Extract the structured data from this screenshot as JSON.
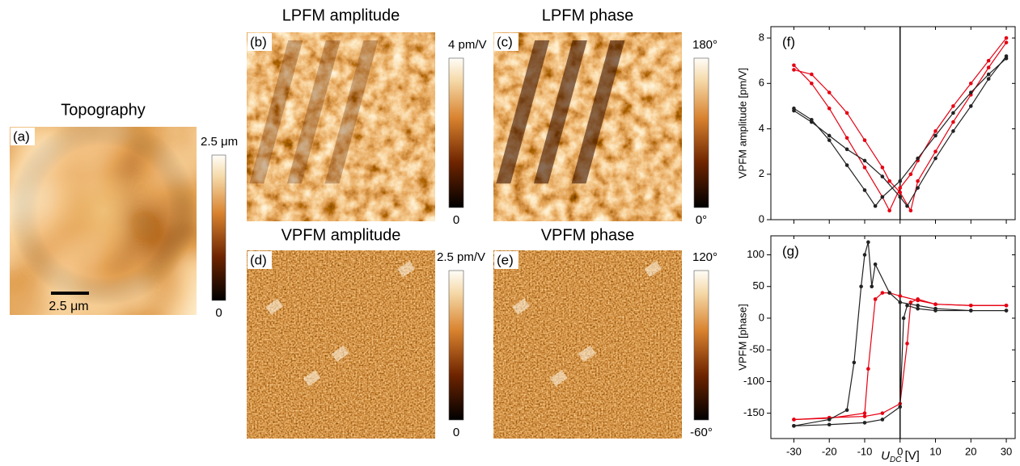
{
  "panels": [
    {
      "label": "(a)",
      "title": "Topography",
      "colorbar_top": "2.5 μm",
      "colorbar_bottom": "0",
      "scalebar": "2.5 μm"
    },
    {
      "label": "(b)",
      "title": "LPFM amplitude",
      "colorbar_top": "4 pm/V",
      "colorbar_bottom": "0"
    },
    {
      "label": "(c)",
      "title": "LPFM phase",
      "colorbar_top": "180°",
      "colorbar_bottom": "0°"
    },
    {
      "label": "(d)",
      "title": "VPFM amplitude",
      "colorbar_top": "2.5 pm/V",
      "colorbar_bottom": "0"
    },
    {
      "label": "(e)",
      "title": "VPFM phase",
      "colorbar_top": "120°",
      "colorbar_bottom": "-60°"
    }
  ],
  "chart_data": [
    {
      "type": "line",
      "label": "(f)",
      "ylabel": "VPFM amplitude [pm/V]",
      "xlim": [
        -36.5,
        32.5
      ],
      "ylim": [
        0,
        8.5
      ],
      "xticks": [
        -30,
        -20,
        -10,
        0,
        10,
        20,
        30
      ],
      "yticks": [
        0,
        2,
        4,
        6,
        8
      ],
      "series": [
        {
          "color": "#e60012",
          "x": [
            -30,
            -25,
            -20,
            -15,
            -10,
            -5,
            -3,
            0,
            3,
            5,
            10,
            15,
            20,
            25,
            30
          ],
          "values": [
            6.8,
            6.0,
            4.9,
            3.6,
            2.3,
            1.0,
            0.4,
            1.4,
            2.0,
            2.6,
            3.9,
            5.0,
            6.0,
            7.0,
            8.0
          ]
        },
        {
          "color": "#e60012",
          "x": [
            30,
            25,
            20,
            15,
            10,
            5,
            3,
            0,
            -3,
            -5,
            -10,
            -15,
            -20,
            -25,
            -30
          ],
          "values": [
            7.8,
            6.7,
            5.5,
            4.3,
            3.0,
            1.7,
            0.4,
            1.2,
            1.7,
            2.3,
            3.5,
            4.7,
            5.6,
            6.4,
            6.6
          ]
        },
        {
          "color": "#222222",
          "x": [
            -30,
            -25,
            -20,
            -15,
            -10,
            -7,
            -5,
            0,
            5,
            10,
            15,
            20,
            25,
            30
          ],
          "values": [
            4.9,
            4.4,
            3.5,
            2.4,
            1.3,
            0.6,
            1.0,
            1.7,
            2.7,
            3.7,
            4.7,
            5.6,
            6.4,
            7.1
          ]
        },
        {
          "color": "#222222",
          "x": [
            30,
            25,
            20,
            15,
            10,
            5,
            2,
            0,
            -5,
            -10,
            -15,
            -20,
            -25,
            -30
          ],
          "values": [
            7.2,
            6.2,
            5.0,
            3.9,
            2.7,
            1.4,
            0.6,
            1.0,
            1.9,
            2.6,
            3.1,
            3.7,
            4.3,
            4.8
          ]
        }
      ]
    },
    {
      "type": "line",
      "label": "(g)",
      "ylabel": "VPFM [phase]",
      "xlabel": {
        "symbol": "U",
        "subscript": "DC",
        "unit": "[V]"
      },
      "xlim": [
        -36.5,
        32.5
      ],
      "ylim": [
        -190,
        130
      ],
      "xticks": [
        -30,
        -20,
        -10,
        0,
        10,
        20,
        30
      ],
      "yticks": [
        -150,
        -100,
        -50,
        0,
        50,
        100
      ],
      "series": [
        {
          "color": "#e60012",
          "x": [
            -30,
            -20,
            -10,
            -5,
            0,
            2,
            3,
            5,
            10,
            20,
            30
          ],
          "values": [
            -160,
            -157,
            -155,
            -150,
            -135,
            -40,
            25,
            30,
            22,
            20,
            20
          ]
        },
        {
          "color": "#e60012",
          "x": [
            30,
            20,
            10,
            5,
            0,
            -3,
            -5,
            -7,
            -9,
            -10,
            -20,
            -30
          ],
          "values": [
            20,
            20,
            22,
            28,
            35,
            40,
            40,
            30,
            -80,
            -150,
            -158,
            -160
          ]
        },
        {
          "color": "#222222",
          "x": [
            -30,
            -20,
            -10,
            -5,
            0,
            1,
            2,
            5,
            10,
            20,
            30
          ],
          "values": [
            -170,
            -168,
            -165,
            -160,
            -140,
            0,
            20,
            15,
            12,
            12,
            12
          ]
        },
        {
          "color": "#222222",
          "x": [
            30,
            20,
            10,
            5,
            0,
            -3,
            -7,
            -8,
            -9,
            -10,
            -11,
            -13,
            -15,
            -20,
            -30
          ],
          "values": [
            12,
            12,
            15,
            20,
            25,
            40,
            85,
            50,
            120,
            100,
            50,
            -70,
            -145,
            -160,
            -170
          ]
        }
      ]
    }
  ]
}
